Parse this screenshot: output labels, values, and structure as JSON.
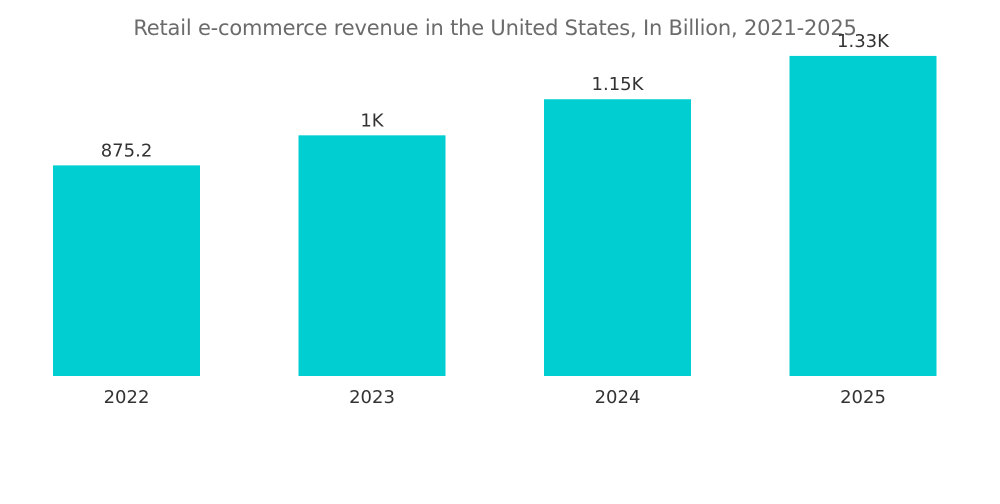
{
  "colors": {
    "bar": "#00CED1",
    "title": "#6b6b6b",
    "text": "#333333"
  },
  "chart_data": {
    "type": "bar",
    "title": "Retail e-commerce revenue in the United States, In Billion, 2021-2025",
    "xlabel": "",
    "ylabel": "",
    "categories": [
      "2022",
      "2023",
      "2024",
      "2025"
    ],
    "values": [
      875.2,
      1000,
      1150,
      1330
    ],
    "data_labels": [
      "875.2",
      "1K",
      "1.15K",
      "1.33K"
    ],
    "ylim": [
      0,
      1500
    ],
    "grid": false,
    "legend": "none"
  }
}
